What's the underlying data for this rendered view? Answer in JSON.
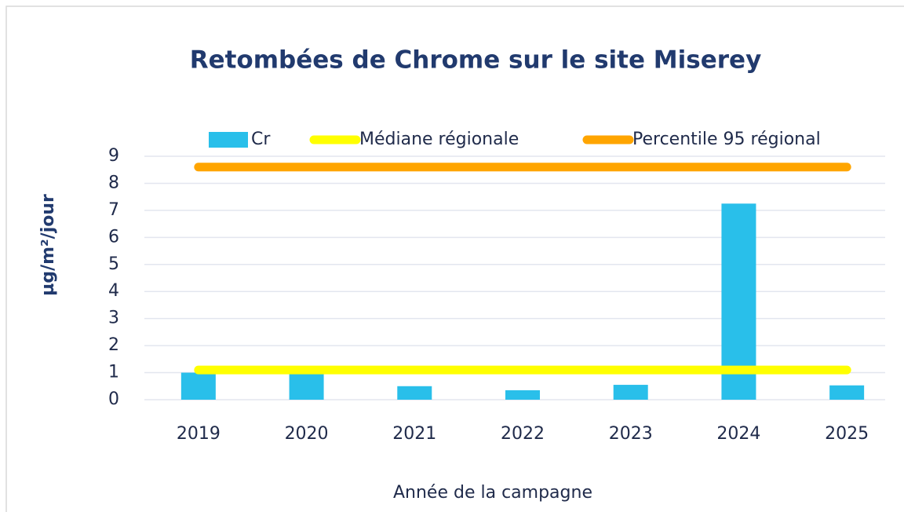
{
  "chart_data": {
    "type": "bar",
    "title": "Retombées de Chrome sur le site Miserey",
    "x_label": "Année de la campagne",
    "y_label": "µg/m²/jour",
    "categories": [
      "2019",
      "2020",
      "2021",
      "2022",
      "2023",
      "2024",
      "2025"
    ],
    "series": [
      {
        "name": "Cr",
        "type": "bar",
        "color": "#29bfea",
        "values": [
          1.0,
          1.0,
          0.5,
          0.35,
          0.55,
          7.25,
          0.53
        ]
      },
      {
        "name": "Médiane régionale",
        "type": "line",
        "color": "#ffff00",
        "values": [
          1.1,
          1.1,
          1.1,
          1.1,
          1.1,
          1.1,
          1.1
        ]
      },
      {
        "name": "Percentile 95 régional",
        "type": "line",
        "color": "#ffa500",
        "values": [
          8.6,
          8.6,
          8.6,
          8.6,
          8.6,
          8.6,
          8.6
        ]
      }
    ],
    "ylim": [
      0,
      9
    ],
    "yticks": [
      0,
      1,
      2,
      3,
      4,
      5,
      6,
      7,
      8,
      9
    ],
    "grid": true,
    "legend": "top"
  }
}
